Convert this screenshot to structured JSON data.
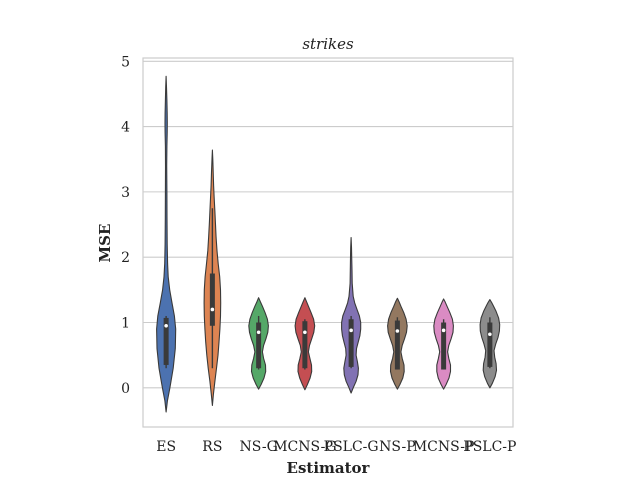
{
  "chart_data": {
    "type": "violin",
    "title": "strikes",
    "xlabel": "Estimator",
    "ylabel": "MSE",
    "ylim": [
      -0.6,
      5.05
    ],
    "yticks": [
      0,
      1,
      2,
      3,
      4,
      5
    ],
    "grid": true,
    "categories": [
      "ES",
      "RS",
      "NS-G",
      "MCNS-G",
      "PSLC-G",
      "NS-P",
      "MCNS-P",
      "PSLC-P"
    ],
    "colors": [
      "#4c72b0",
      "#dd8452",
      "#55a868",
      "#c44e52",
      "#8172b3",
      "#937860",
      "#da8bc3",
      "#8c8c8c"
    ],
    "violins": [
      {
        "name": "ES",
        "min": -0.37,
        "max": 4.77,
        "q1": 0.35,
        "median": 0.95,
        "q3": 1.07,
        "whisker_low": 0.3,
        "whisker_high": 1.1,
        "profile": [
          [
            -0.37,
            0.0
          ],
          [
            -0.2,
            0.06
          ],
          [
            0.0,
            0.18
          ],
          [
            0.3,
            0.34
          ],
          [
            0.6,
            0.44
          ],
          [
            0.9,
            0.46
          ],
          [
            1.1,
            0.4
          ],
          [
            1.3,
            0.28
          ],
          [
            1.5,
            0.17
          ],
          [
            1.7,
            0.1
          ],
          [
            1.9,
            0.07
          ],
          [
            2.2,
            0.05
          ],
          [
            2.6,
            0.04
          ],
          [
            3.0,
            0.035
          ],
          [
            3.4,
            0.03
          ],
          [
            3.7,
            0.035
          ],
          [
            3.9,
            0.05
          ],
          [
            4.05,
            0.055
          ],
          [
            4.2,
            0.05
          ],
          [
            4.4,
            0.035
          ],
          [
            4.6,
            0.02
          ],
          [
            4.77,
            0.0
          ]
        ]
      },
      {
        "name": "RS",
        "min": -0.27,
        "max": 3.64,
        "q1": 0.95,
        "median": 1.2,
        "q3": 1.75,
        "whisker_low": 0.3,
        "whisker_high": 2.75,
        "profile": [
          [
            -0.27,
            0.0
          ],
          [
            -0.1,
            0.05
          ],
          [
            0.1,
            0.12
          ],
          [
            0.3,
            0.2
          ],
          [
            0.5,
            0.27
          ],
          [
            0.7,
            0.32
          ],
          [
            0.9,
            0.36
          ],
          [
            1.1,
            0.39
          ],
          [
            1.3,
            0.4
          ],
          [
            1.5,
            0.39
          ],
          [
            1.7,
            0.35
          ],
          [
            1.9,
            0.28
          ],
          [
            2.1,
            0.22
          ],
          [
            2.3,
            0.18
          ],
          [
            2.5,
            0.15
          ],
          [
            2.7,
            0.12
          ],
          [
            2.9,
            0.09
          ],
          [
            3.1,
            0.06
          ],
          [
            3.3,
            0.04
          ],
          [
            3.5,
            0.02
          ],
          [
            3.64,
            0.0
          ]
        ]
      },
      {
        "name": "NS-G",
        "min": -0.02,
        "max": 1.38,
        "q1": 0.3,
        "median": 0.85,
        "q3": 1.0,
        "whisker_low": 0.28,
        "whisker_high": 1.1,
        "profile": [
          [
            -0.02,
            0.0
          ],
          [
            0.05,
            0.12
          ],
          [
            0.15,
            0.26
          ],
          [
            0.25,
            0.34
          ],
          [
            0.35,
            0.33
          ],
          [
            0.45,
            0.24
          ],
          [
            0.55,
            0.18
          ],
          [
            0.65,
            0.24
          ],
          [
            0.75,
            0.35
          ],
          [
            0.85,
            0.44
          ],
          [
            0.95,
            0.47
          ],
          [
            1.05,
            0.42
          ],
          [
            1.15,
            0.31
          ],
          [
            1.25,
            0.18
          ],
          [
            1.32,
            0.08
          ],
          [
            1.38,
            0.0
          ]
        ]
      },
      {
        "name": "MCNS-G",
        "min": -0.03,
        "max": 1.38,
        "q1": 0.3,
        "median": 0.85,
        "q3": 1.02,
        "whisker_low": 0.28,
        "whisker_high": 1.05,
        "profile": [
          [
            -0.03,
            0.0
          ],
          [
            0.05,
            0.12
          ],
          [
            0.15,
            0.25
          ],
          [
            0.25,
            0.33
          ],
          [
            0.35,
            0.32
          ],
          [
            0.45,
            0.24
          ],
          [
            0.55,
            0.17
          ],
          [
            0.65,
            0.22
          ],
          [
            0.75,
            0.33
          ],
          [
            0.85,
            0.43
          ],
          [
            0.95,
            0.47
          ],
          [
            1.05,
            0.42
          ],
          [
            1.15,
            0.3
          ],
          [
            1.25,
            0.17
          ],
          [
            1.32,
            0.08
          ],
          [
            1.38,
            0.0
          ]
        ]
      },
      {
        "name": "PSLC-G",
        "min": -0.08,
        "max": 2.3,
        "q1": 0.32,
        "median": 0.88,
        "q3": 1.05,
        "whisker_low": 0.3,
        "whisker_high": 1.1,
        "profile": [
          [
            -0.08,
            0.0
          ],
          [
            0.0,
            0.1
          ],
          [
            0.1,
            0.24
          ],
          [
            0.2,
            0.33
          ],
          [
            0.3,
            0.35
          ],
          [
            0.4,
            0.3
          ],
          [
            0.5,
            0.24
          ],
          [
            0.6,
            0.26
          ],
          [
            0.7,
            0.34
          ],
          [
            0.8,
            0.42
          ],
          [
            0.9,
            0.46
          ],
          [
            1.0,
            0.46
          ],
          [
            1.1,
            0.4
          ],
          [
            1.2,
            0.28
          ],
          [
            1.3,
            0.17
          ],
          [
            1.4,
            0.1
          ],
          [
            1.6,
            0.05
          ],
          [
            1.8,
            0.04
          ],
          [
            2.0,
            0.03
          ],
          [
            2.15,
            0.02
          ],
          [
            2.3,
            0.0
          ]
        ]
      },
      {
        "name": "NS-P",
        "min": -0.02,
        "max": 1.37,
        "q1": 0.28,
        "median": 0.87,
        "q3": 1.03,
        "whisker_low": 0.28,
        "whisker_high": 1.08,
        "profile": [
          [
            -0.02,
            0.0
          ],
          [
            0.05,
            0.12
          ],
          [
            0.15,
            0.26
          ],
          [
            0.25,
            0.33
          ],
          [
            0.35,
            0.32
          ],
          [
            0.45,
            0.23
          ],
          [
            0.55,
            0.17
          ],
          [
            0.65,
            0.23
          ],
          [
            0.75,
            0.34
          ],
          [
            0.85,
            0.44
          ],
          [
            0.95,
            0.47
          ],
          [
            1.05,
            0.42
          ],
          [
            1.15,
            0.31
          ],
          [
            1.25,
            0.17
          ],
          [
            1.32,
            0.08
          ],
          [
            1.37,
            0.0
          ]
        ]
      },
      {
        "name": "MCNS-P",
        "min": -0.02,
        "max": 1.36,
        "q1": 0.28,
        "median": 0.88,
        "q3": 1.0,
        "whisker_low": 0.28,
        "whisker_high": 1.05,
        "profile": [
          [
            -0.02,
            0.0
          ],
          [
            0.05,
            0.12
          ],
          [
            0.15,
            0.26
          ],
          [
            0.25,
            0.33
          ],
          [
            0.35,
            0.33
          ],
          [
            0.45,
            0.25
          ],
          [
            0.55,
            0.19
          ],
          [
            0.65,
            0.25
          ],
          [
            0.75,
            0.36
          ],
          [
            0.85,
            0.45
          ],
          [
            0.95,
            0.47
          ],
          [
            1.05,
            0.42
          ],
          [
            1.15,
            0.3
          ],
          [
            1.25,
            0.16
          ],
          [
            1.31,
            0.08
          ],
          [
            1.36,
            0.0
          ]
        ]
      },
      {
        "name": "PSLC-P",
        "min": 0.0,
        "max": 1.35,
        "q1": 0.32,
        "median": 0.82,
        "q3": 1.0,
        "whisker_low": 0.3,
        "whisker_high": 1.08,
        "profile": [
          [
            0.0,
            0.0
          ],
          [
            0.07,
            0.12
          ],
          [
            0.17,
            0.25
          ],
          [
            0.27,
            0.32
          ],
          [
            0.37,
            0.3
          ],
          [
            0.47,
            0.23
          ],
          [
            0.57,
            0.2
          ],
          [
            0.67,
            0.28
          ],
          [
            0.77,
            0.39
          ],
          [
            0.87,
            0.46
          ],
          [
            0.97,
            0.47
          ],
          [
            1.07,
            0.42
          ],
          [
            1.17,
            0.3
          ],
          [
            1.26,
            0.16
          ],
          [
            1.31,
            0.08
          ],
          [
            1.35,
            0.0
          ]
        ]
      }
    ]
  }
}
